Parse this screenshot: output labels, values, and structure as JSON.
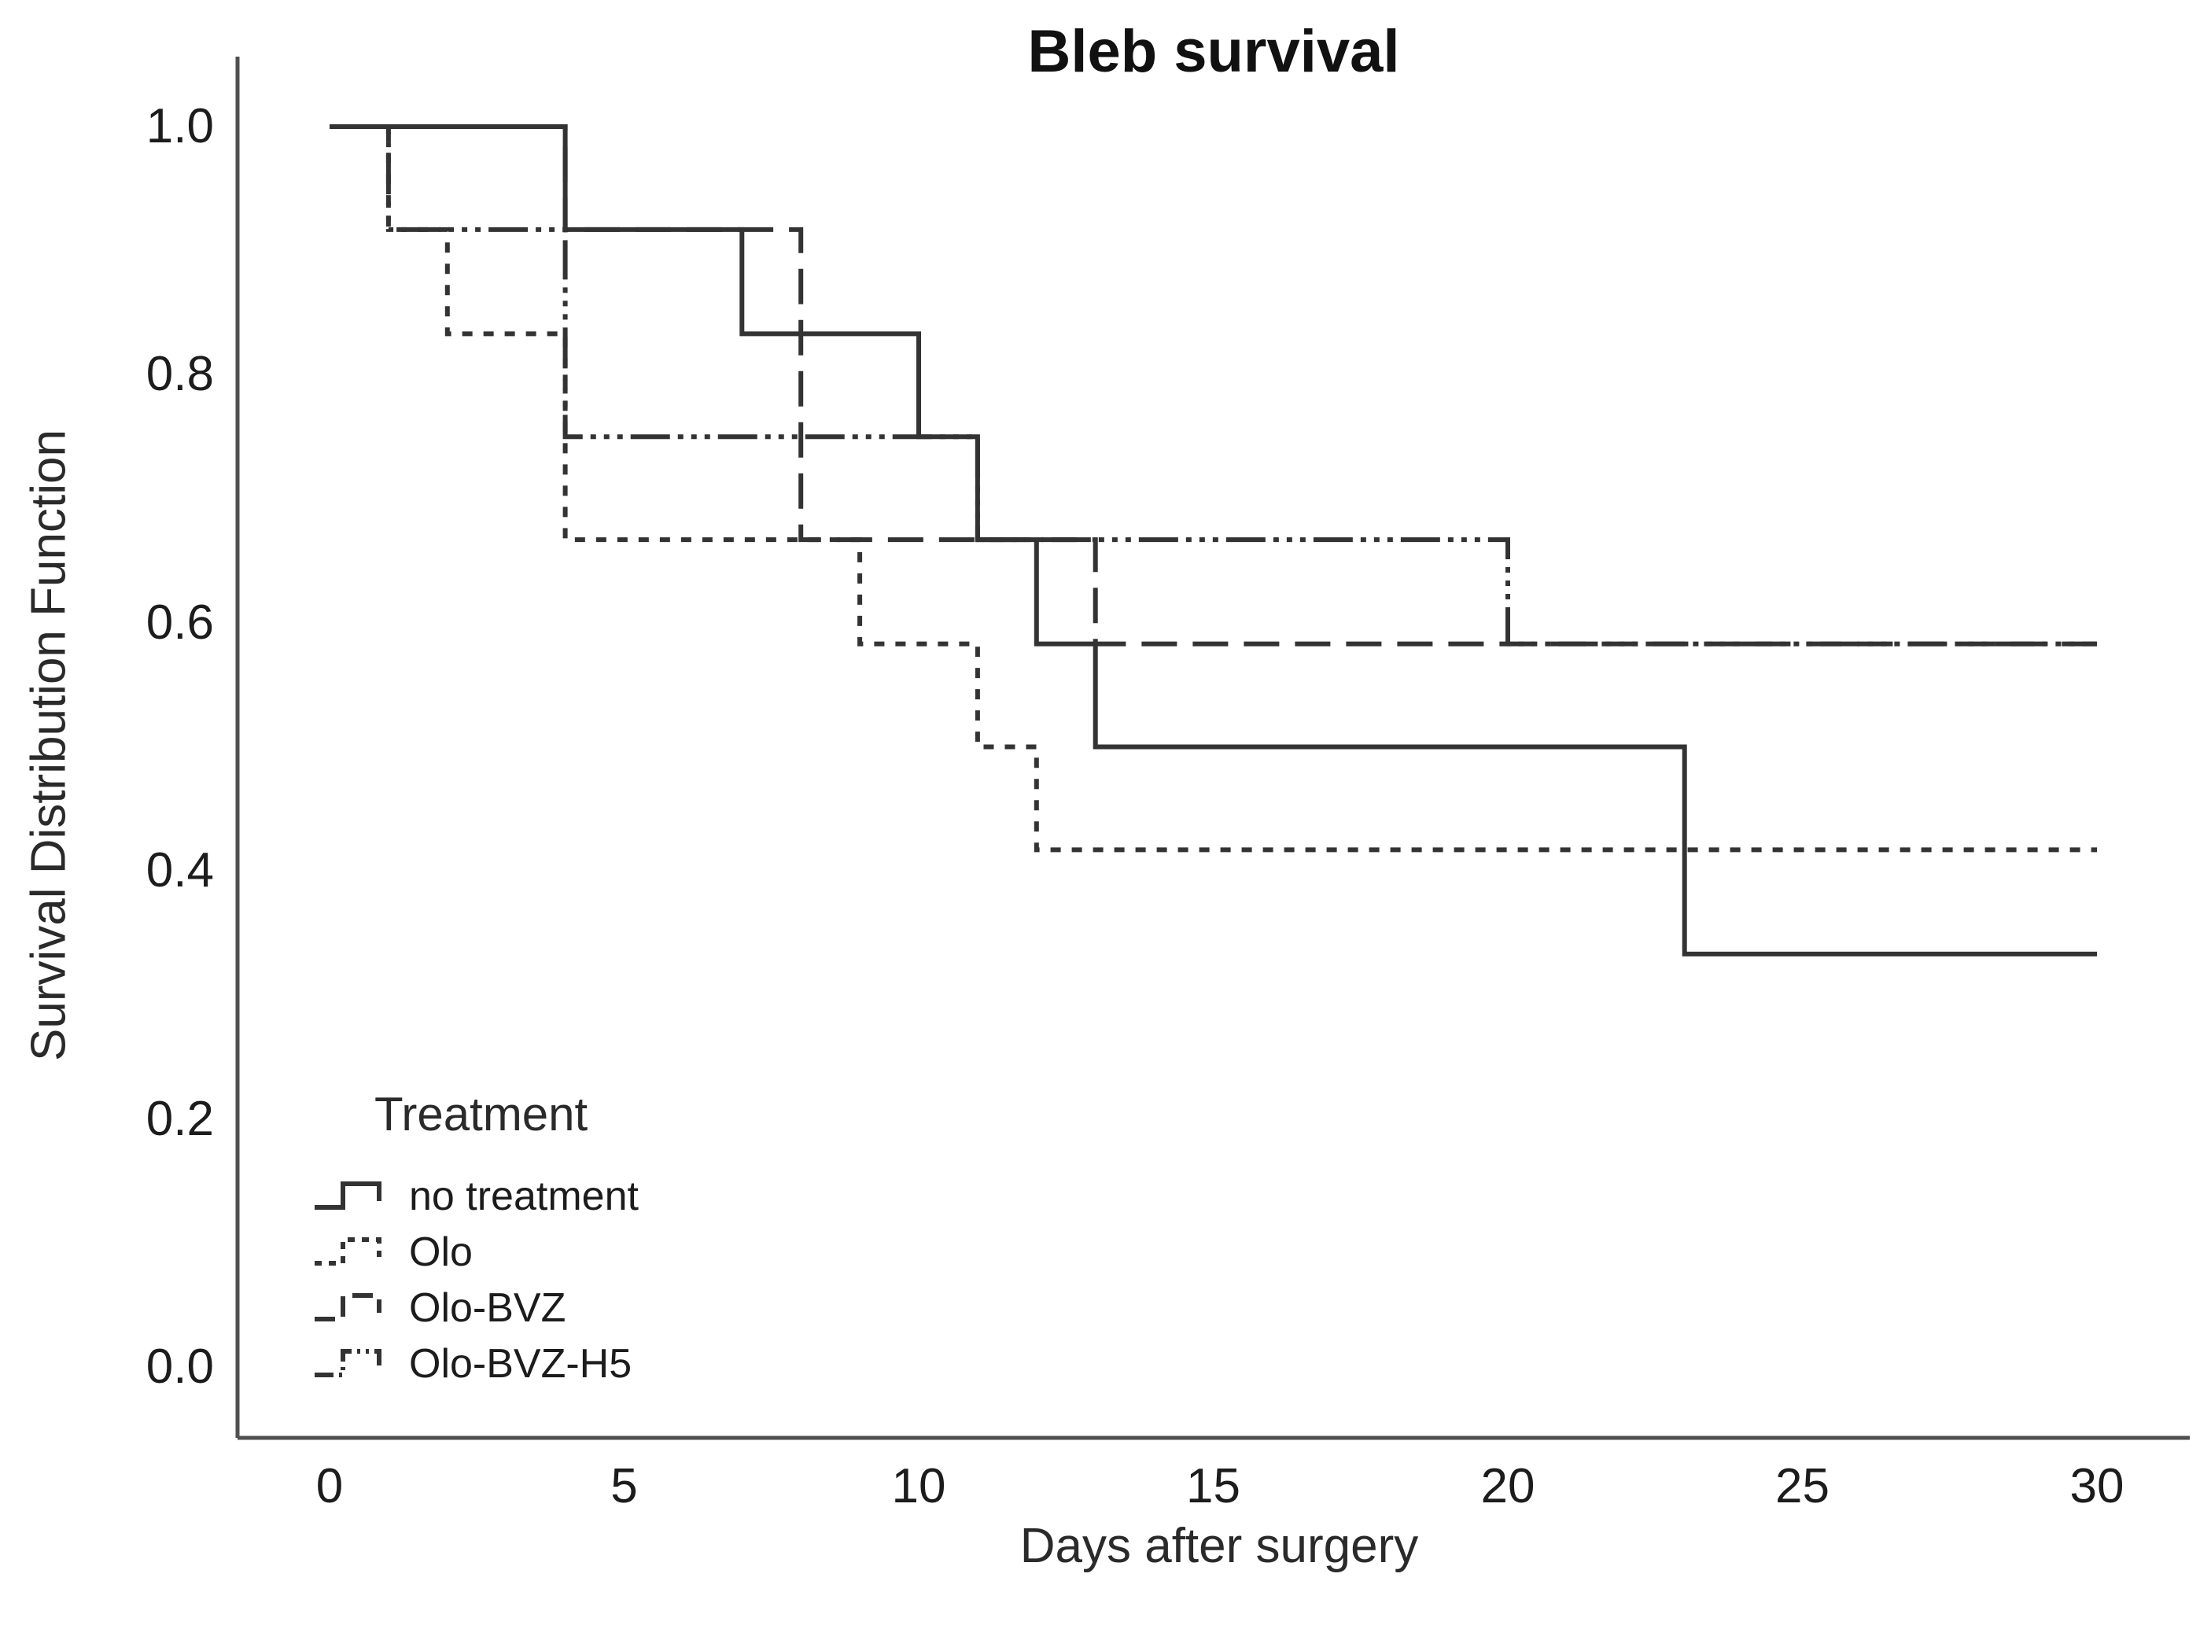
{
  "title": "Bleb survival",
  "axes": {
    "x": {
      "label": "Days after surgery",
      "tick_labels": [
        "0",
        "5",
        "10",
        "15",
        "20",
        "25",
        "30"
      ],
      "tick_values": [
        0,
        5,
        10,
        15,
        20,
        25,
        30
      ]
    },
    "y": {
      "label": "Survival Distribution Function",
      "tick_labels": [
        "1.0",
        "0.8",
        "0.6",
        "0.4",
        "0.2",
        "0.0"
      ],
      "tick_values": [
        1.0,
        0.8,
        0.6,
        0.4,
        0.2,
        0.0
      ]
    }
  },
  "legend": {
    "title": "Treatment",
    "items": [
      {
        "label": "no treatment",
        "style": "solid"
      },
      {
        "label": "Olo",
        "style": "dotted"
      },
      {
        "label": "Olo-BVZ",
        "style": "long-dash"
      },
      {
        "label": "Olo-BVZ-H5",
        "style": "dash-dot-dot"
      }
    ]
  },
  "chart_data": {
    "type": "line",
    "subtype": "kaplan-meier-step",
    "title": "Bleb survival",
    "xlabel": "Days after surgery",
    "ylabel": "Survival Distribution Function",
    "xlim": [
      0,
      30
    ],
    "ylim": [
      0.0,
      1.0
    ],
    "x_ticks": [
      0,
      5,
      10,
      15,
      20,
      25,
      30
    ],
    "y_ticks": [
      0.0,
      0.2,
      0.4,
      0.6,
      0.8,
      1.0
    ],
    "grid": false,
    "legend_position": "lower-left",
    "line_color": "#333333",
    "series": [
      {
        "name": "no treatment",
        "style": "solid",
        "steps": [
          [
            0,
            1.0
          ],
          [
            4,
            0.917
          ],
          [
            7,
            0.833
          ],
          [
            10,
            0.75
          ],
          [
            11,
            0.667
          ],
          [
            12,
            0.583
          ],
          [
            13,
            0.5
          ],
          [
            23,
            0.333
          ]
        ],
        "end_day": 30,
        "final_value": 0.333
      },
      {
        "name": "Olo",
        "style": "dotted",
        "steps": [
          [
            0,
            1.0
          ],
          [
            1,
            0.917
          ],
          [
            2,
            0.833
          ],
          [
            4,
            0.667
          ],
          [
            9,
            0.583
          ],
          [
            11,
            0.5
          ],
          [
            12,
            0.417
          ]
        ],
        "end_day": 30,
        "final_value": 0.417
      },
      {
        "name": "Olo-BVZ",
        "style": "long-dash",
        "steps": [
          [
            0,
            1.0
          ],
          [
            4,
            0.917
          ],
          [
            8,
            0.667
          ],
          [
            13,
            0.583
          ]
        ],
        "end_day": 30,
        "final_value": 0.583
      },
      {
        "name": "Olo-BVZ-H5",
        "style": "dash-dot-dot",
        "steps": [
          [
            0,
            1.0
          ],
          [
            1,
            0.917
          ],
          [
            4,
            0.75
          ],
          [
            11,
            0.667
          ],
          [
            20,
            0.583
          ]
        ],
        "end_day": 30,
        "final_value": 0.583
      }
    ]
  }
}
